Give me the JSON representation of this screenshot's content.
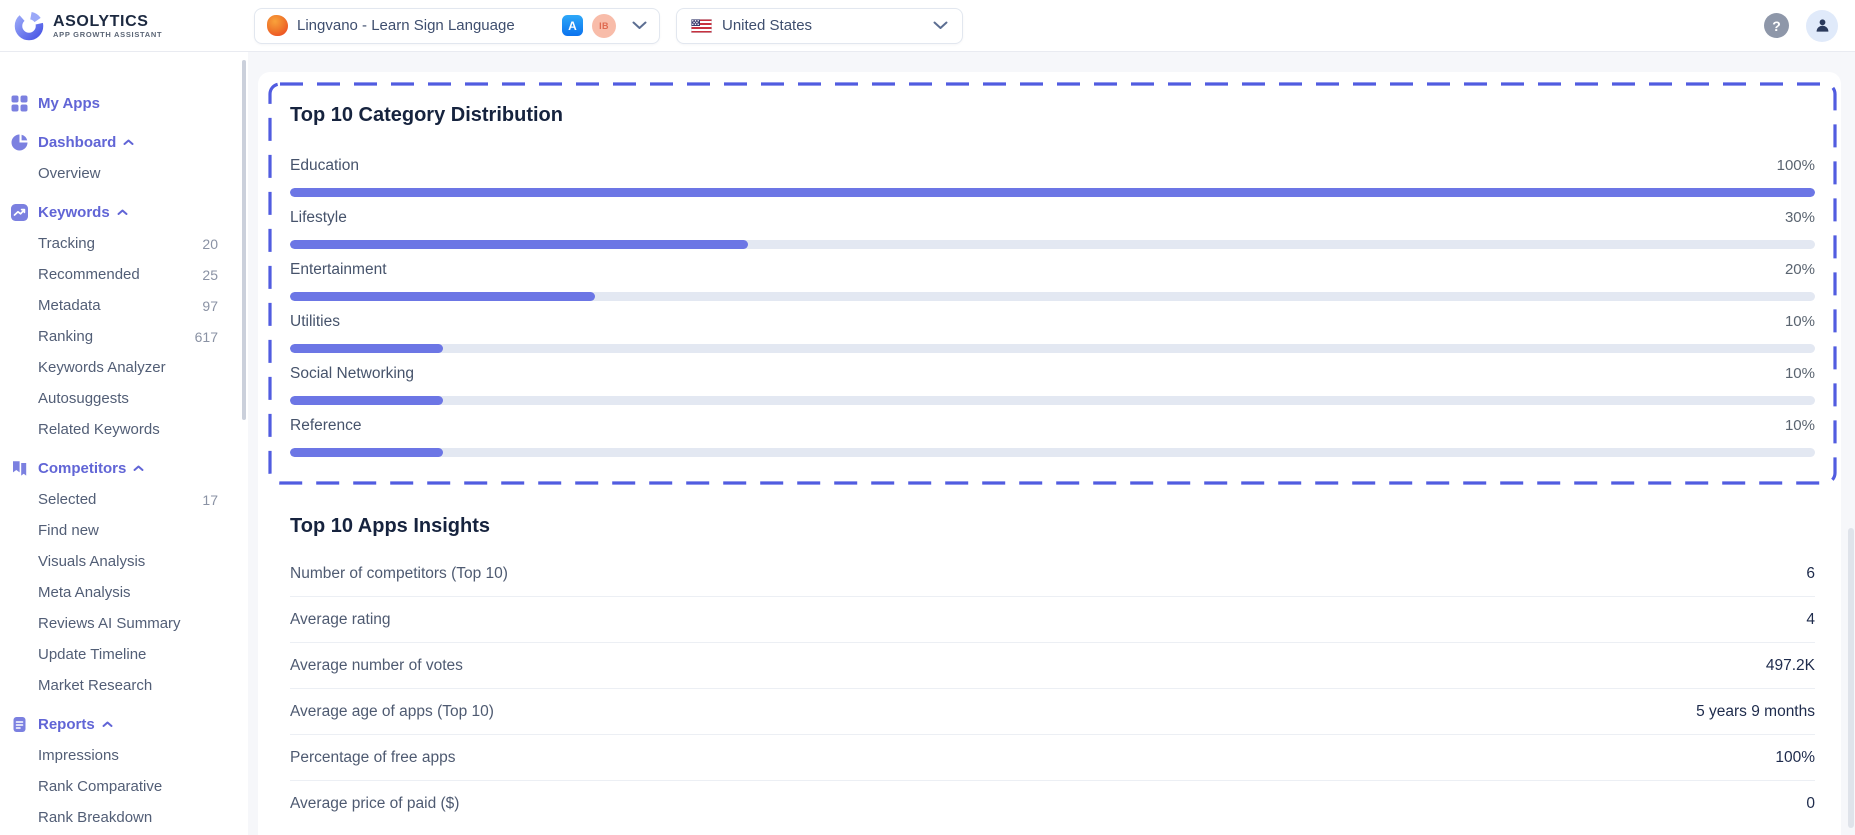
{
  "header": {
    "logo": {
      "title": "ASOLYTICS",
      "subtitle": "APP GROWTH ASSISTANT"
    },
    "app_selector": {
      "app_name": "Lingvano - Learn Sign Language",
      "store_badge": "A",
      "owner_badge": "IB"
    },
    "country_selector": {
      "value": "United States"
    },
    "help_label": "?"
  },
  "sidebar": {
    "items": [
      {
        "label": "My Apps"
      },
      {
        "label": "Dashboard"
      },
      {
        "label": "Overview"
      },
      {
        "label": "Keywords"
      },
      {
        "label": "Tracking",
        "count": "20"
      },
      {
        "label": "Recommended",
        "count": "25"
      },
      {
        "label": "Metadata",
        "count": "97"
      },
      {
        "label": "Ranking",
        "count": "617"
      },
      {
        "label": "Keywords Analyzer"
      },
      {
        "label": "Autosuggests"
      },
      {
        "label": "Related Keywords"
      },
      {
        "label": "Competitors"
      },
      {
        "label": "Selected",
        "count": "17"
      },
      {
        "label": "Find new"
      },
      {
        "label": "Visuals Analysis"
      },
      {
        "label": "Meta Analysis"
      },
      {
        "label": "Reviews AI Summary"
      },
      {
        "label": "Update Timeline"
      },
      {
        "label": "Market Research"
      },
      {
        "label": "Reports"
      },
      {
        "label": "Impressions"
      },
      {
        "label": "Rank Comparative"
      },
      {
        "label": "Rank Breakdown"
      }
    ]
  },
  "main": {
    "category_panel": {
      "title": "Top 10 Category Distribution",
      "rows": [
        {
          "label": "Education",
          "percent": "100%",
          "value": 100
        },
        {
          "label": "Lifestyle",
          "percent": "30%",
          "value": 30
        },
        {
          "label": "Entertainment",
          "percent": "20%",
          "value": 20
        },
        {
          "label": "Utilities",
          "percent": "10%",
          "value": 10
        },
        {
          "label": "Social Networking",
          "percent": "10%",
          "value": 10
        },
        {
          "label": "Reference",
          "percent": "10%",
          "value": 10
        }
      ]
    },
    "insights": {
      "title": "Top 10 Apps Insights",
      "rows": [
        {
          "label": "Number of competitors (Top 10)",
          "value": "6"
        },
        {
          "label": "Average rating",
          "value": "4"
        },
        {
          "label": "Average number of votes",
          "value": "497.2K"
        },
        {
          "label": "Average age of apps (Top 10)",
          "value": "5 years 9 months"
        },
        {
          "label": "Percentage of free apps",
          "value": "100%"
        },
        {
          "label": "Average price of paid ($)",
          "value": "0"
        }
      ]
    }
  },
  "colors": {
    "accent_purple": "#6165D6",
    "bar_fill": "#6C76E5",
    "bar_track": "#E3E8F2",
    "dashed_border": "#515CE0",
    "title_navy": "#16233E"
  },
  "chart_data": {
    "type": "bar",
    "orientation": "horizontal",
    "title": "Top 10 Category Distribution",
    "categories": [
      "Education",
      "Lifestyle",
      "Entertainment",
      "Utilities",
      "Social Networking",
      "Reference"
    ],
    "values": [
      100,
      30,
      20,
      10,
      10,
      10
    ],
    "unit": "%",
    "xlim": [
      0,
      100
    ]
  }
}
